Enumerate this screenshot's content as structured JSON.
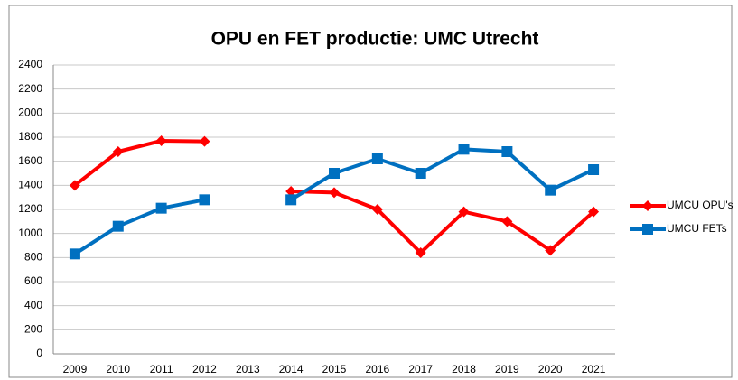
{
  "chart_data": {
    "type": "line",
    "title": "OPU en FET productie: UMC Utrecht",
    "categories": [
      "2009",
      "2010",
      "2011",
      "2012",
      "2013",
      "2014",
      "2015",
      "2016",
      "2017",
      "2018",
      "2019",
      "2020",
      "2021"
    ],
    "series": [
      {
        "name": "UMCU OPU's",
        "color": "#ff0000",
        "marker": "diamond",
        "values": [
          1400,
          1680,
          1770,
          1765,
          null,
          1350,
          1340,
          1200,
          840,
          1180,
          1100,
          860,
          1180
        ]
      },
      {
        "name": "UMCU FETs",
        "color": "#0070c0",
        "marker": "square",
        "values": [
          830,
          1060,
          1210,
          1280,
          null,
          1280,
          1500,
          1620,
          1500,
          1700,
          1680,
          1360,
          1530
        ]
      }
    ],
    "ylim": [
      0,
      2400
    ],
    "yticks": [
      0,
      200,
      400,
      600,
      800,
      1000,
      1200,
      1400,
      1600,
      1800,
      2000,
      2200,
      2400
    ],
    "grid": true,
    "legend": "right"
  }
}
